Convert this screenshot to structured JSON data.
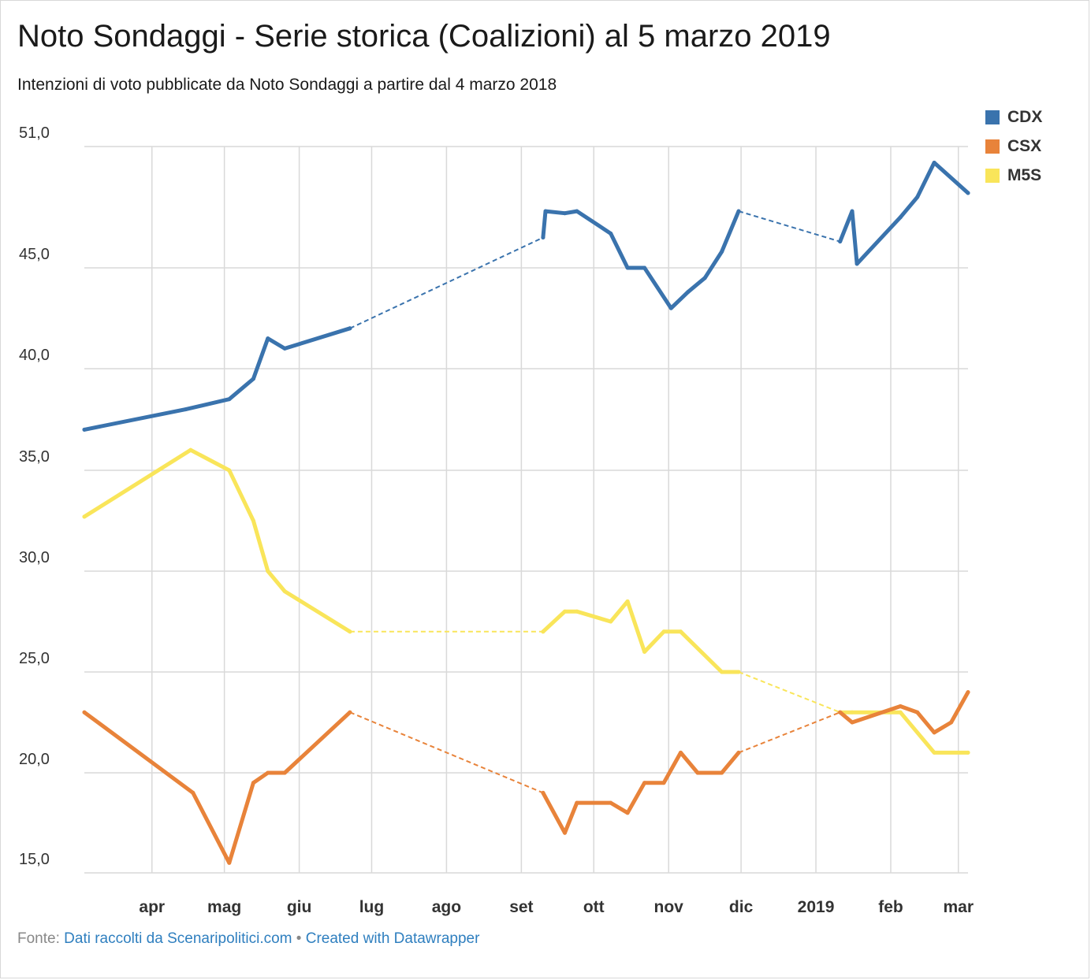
{
  "title": "Noto Sondaggi - Serie storica (Coalizioni) al 5 marzo 2019",
  "subtitle": "Intenzioni di voto pubblicate da Noto Sondaggi a partire dal 4 marzo 2018",
  "footer": {
    "prefix": "Fonte: ",
    "source_link": "Dati raccolti da Scenaripolitici.com",
    "separator": " • ",
    "credit_link": "Created with Datawrapper"
  },
  "colors": {
    "CDX": "#3a73ad",
    "CSX": "#e8833a",
    "M5S": "#f9e55a",
    "grid": "#d9d9d9",
    "link": "#2f7fbf"
  },
  "chart_data": {
    "type": "line",
    "title": "Noto Sondaggi - Serie storica (Coalizioni) al 5 marzo 2019",
    "xlabel": "",
    "ylabel": "",
    "ylim": [
      15,
      51
    ],
    "xlim": [
      "2018-03-04",
      "2019-03-05"
    ],
    "y_ticks": [
      "15,0",
      "20,0",
      "25,0",
      "30,0",
      "35,0",
      "40,0",
      "45,0",
      "51,0"
    ],
    "y_tick_values": [
      15,
      20,
      25,
      30,
      35,
      40,
      45,
      51
    ],
    "x_ticks": [
      {
        "label": "apr",
        "date": "2018-04-01"
      },
      {
        "label": "mag",
        "date": "2018-05-01"
      },
      {
        "label": "giu",
        "date": "2018-06-01"
      },
      {
        "label": "lug",
        "date": "2018-07-01"
      },
      {
        "label": "ago",
        "date": "2018-08-01"
      },
      {
        "label": "set",
        "date": "2018-09-01"
      },
      {
        "label": "ott",
        "date": "2018-10-01"
      },
      {
        "label": "nov",
        "date": "2018-11-01"
      },
      {
        "label": "dic",
        "date": "2018-12-01"
      },
      {
        "label": "2019",
        "date": "2019-01-01"
      },
      {
        "label": "feb",
        "date": "2019-02-01"
      },
      {
        "label": "mar",
        "date": "2019-03-01"
      }
    ],
    "grid": true,
    "legend_position": "top-right",
    "gap_style": "dashed",
    "series": [
      {
        "name": "CDX",
        "segments": [
          [
            [
              "2018-03-04",
              37.0
            ],
            [
              "2018-04-15",
              38.0
            ],
            [
              "2018-05-03",
              38.5
            ],
            [
              "2018-05-13",
              39.5
            ],
            [
              "2018-05-19",
              41.5
            ],
            [
              "2018-05-26",
              41.0
            ],
            [
              "2018-06-22",
              42.0
            ]
          ],
          [
            [
              "2018-09-10",
              46.5
            ],
            [
              "2018-09-11",
              47.8
            ],
            [
              "2018-09-19",
              47.7
            ],
            [
              "2018-09-24",
              47.8
            ],
            [
              "2018-10-08",
              46.7
            ],
            [
              "2018-10-15",
              45.0
            ],
            [
              "2018-10-22",
              45.0
            ],
            [
              "2018-11-02",
              43.0
            ],
            [
              "2018-11-09",
              43.8
            ],
            [
              "2018-11-16",
              44.5
            ],
            [
              "2018-11-23",
              45.8
            ],
            [
              "2018-11-30",
              47.8
            ]
          ],
          [
            [
              "2019-01-11",
              46.3
            ],
            [
              "2019-01-16",
              47.8
            ],
            [
              "2019-01-18",
              45.2
            ],
            [
              "2019-02-05",
              47.5
            ],
            [
              "2019-02-12",
              48.5
            ],
            [
              "2019-02-19",
              50.2
            ],
            [
              "2019-03-05",
              48.7
            ]
          ]
        ]
      },
      {
        "name": "CSX",
        "segments": [
          [
            [
              "2018-03-04",
              23.0
            ],
            [
              "2018-04-18",
              19.0
            ],
            [
              "2018-05-03",
              15.5
            ],
            [
              "2018-05-13",
              19.5
            ],
            [
              "2018-05-19",
              20.0
            ],
            [
              "2018-05-26",
              20.0
            ],
            [
              "2018-06-22",
              23.0
            ]
          ],
          [
            [
              "2018-09-10",
              19.0
            ],
            [
              "2018-09-19",
              17.0
            ],
            [
              "2018-09-24",
              18.5
            ],
            [
              "2018-10-08",
              18.5
            ],
            [
              "2018-10-15",
              18.0
            ],
            [
              "2018-10-22",
              19.5
            ],
            [
              "2018-10-30",
              19.5
            ],
            [
              "2018-11-06",
              21.0
            ],
            [
              "2018-11-13",
              20.0
            ],
            [
              "2018-11-23",
              20.0
            ],
            [
              "2018-11-30",
              21.0
            ]
          ],
          [
            [
              "2019-01-11",
              23.0
            ],
            [
              "2019-01-16",
              22.5
            ],
            [
              "2019-02-05",
              23.3
            ],
            [
              "2019-02-12",
              23.0
            ],
            [
              "2019-02-19",
              22.0
            ],
            [
              "2019-02-26",
              22.5
            ],
            [
              "2019-03-05",
              24.0
            ]
          ]
        ]
      },
      {
        "name": "M5S",
        "segments": [
          [
            [
              "2018-03-04",
              32.7
            ],
            [
              "2018-04-17",
              36.0
            ],
            [
              "2018-05-03",
              35.0
            ],
            [
              "2018-05-13",
              32.5
            ],
            [
              "2018-05-19",
              30.0
            ],
            [
              "2018-05-26",
              29.0
            ],
            [
              "2018-06-22",
              27.0
            ]
          ],
          [
            [
              "2018-09-10",
              27.0
            ],
            [
              "2018-09-19",
              28.0
            ],
            [
              "2018-09-24",
              28.0
            ],
            [
              "2018-10-08",
              27.5
            ],
            [
              "2018-10-15",
              28.5
            ],
            [
              "2018-10-22",
              26.0
            ],
            [
              "2018-10-30",
              27.0
            ],
            [
              "2018-11-06",
              27.0
            ],
            [
              "2018-11-23",
              25.0
            ],
            [
              "2018-11-30",
              25.0
            ]
          ],
          [
            [
              "2019-01-11",
              23.0
            ],
            [
              "2019-01-16",
              23.0
            ],
            [
              "2019-02-05",
              23.0
            ],
            [
              "2019-02-19",
              21.0
            ],
            [
              "2019-03-05",
              21.0
            ]
          ]
        ]
      }
    ]
  }
}
